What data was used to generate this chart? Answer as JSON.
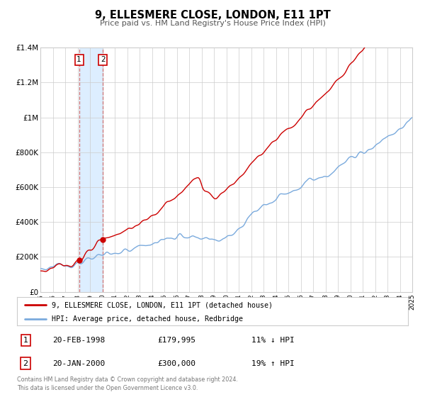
{
  "title": "9, ELLESMERE CLOSE, LONDON, E11 1PT",
  "subtitle": "Price paid vs. HM Land Registry's House Price Index (HPI)",
  "sale1_date": "20-FEB-1998",
  "sale1_price": 179995,
  "sale1_year": 1998.12,
  "sale2_date": "20-JAN-2000",
  "sale2_price": 300000,
  "sale2_year": 2000.04,
  "red_line_color": "#cc0000",
  "blue_line_color": "#7aaadd",
  "shade_color": "#ddeeff",
  "dashed_line_color": "#cc6666",
  "grid_color": "#cccccc",
  "background_color": "#ffffff",
  "legend_label_red": "9, ELLESMERE CLOSE, LONDON, E11 1PT (detached house)",
  "legend_label_blue": "HPI: Average price, detached house, Redbridge",
  "sale1_hpi_diff": "11% ↓ HPI",
  "sale2_hpi_diff": "19% ↑ HPI",
  "footer_text": "Contains HM Land Registry data © Crown copyright and database right 2024.\nThis data is licensed under the Open Government Licence v3.0.",
  "y_ticks": [
    0,
    200000,
    400000,
    600000,
    800000,
    1000000,
    1200000,
    1400000
  ],
  "y_tick_labels": [
    "£0",
    "£200K",
    "£400K",
    "£600K",
    "£800K",
    "£1M",
    "£1.2M",
    "£1.4M"
  ]
}
